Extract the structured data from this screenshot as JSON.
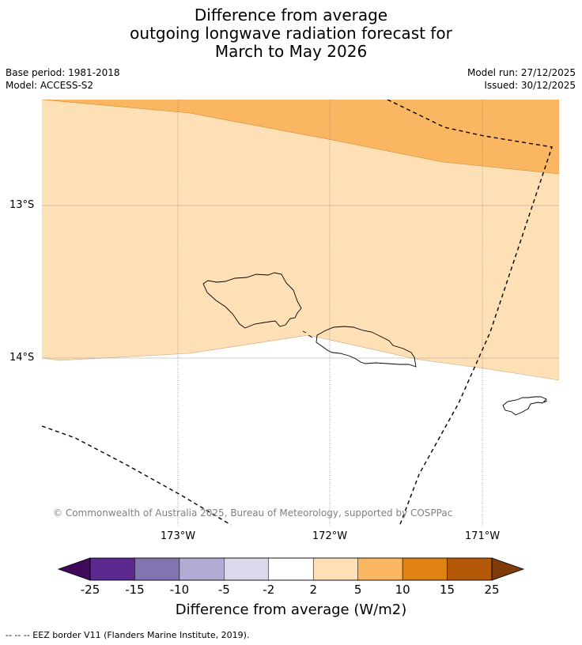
{
  "title": {
    "line1": "Difference from average",
    "line2": "outgoing longwave radiation forecast for",
    "line3": "March to May 2026"
  },
  "meta": {
    "base_period": "Base period: 1981-2018",
    "model": "Model: ACCESS-S2",
    "model_run": "Model run: 27/12/2025",
    "issued": "Issued: 30/12/2025"
  },
  "map": {
    "lat_labels": [
      "13°S",
      "14°S"
    ],
    "lon_labels": [
      "173°W",
      "172°W",
      "171°W"
    ],
    "copyright": "© Commonwealth of Australia 2025, Bureau of Meteorology, supported by COSPPac",
    "regions": [
      {
        "name": "5 to 10 W/m2",
        "color": "#fbb662"
      },
      {
        "name": "2 to 5 W/m2",
        "color": "#fde0b6"
      }
    ],
    "islands": [
      "Savai'i",
      "Upolu",
      "Tutuila"
    ]
  },
  "colorbar": {
    "ticks": [
      "-25",
      "-15",
      "-10",
      "-5",
      "-2",
      "2",
      "5",
      "10",
      "15",
      "25"
    ],
    "colors": [
      "#3f0a5a",
      "#5b2990",
      "#8273b1",
      "#b2abd3",
      "#d9d9eb",
      "#ffffff",
      "#fde0b6",
      "#fbb662",
      "#e08214",
      "#b35806",
      "#7f3b08"
    ],
    "label": "Difference from average (W/m2)"
  },
  "footnote": "--  --  -- EEZ border V11 (Flanders Marine Institute, 2019)."
}
